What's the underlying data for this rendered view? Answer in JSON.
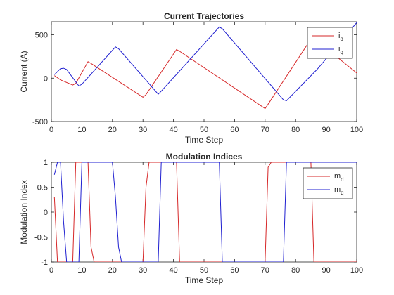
{
  "colors": {
    "id": "#d62728",
    "iq": "#1f1fd0",
    "axis": "#262626",
    "background": "#ffffff"
  },
  "chart_data": [
    {
      "type": "line",
      "title": "Current Trajectories",
      "xlabel": "Time Step",
      "ylabel": "Current (A)",
      "xlim": [
        0,
        100
      ],
      "ylim": [
        -500,
        650
      ],
      "xticks": [
        0,
        10,
        20,
        30,
        40,
        50,
        60,
        70,
        80,
        90,
        100
      ],
      "yticks": [
        -500,
        0,
        500
      ],
      "grid": false,
      "legend_position": "top-right",
      "series": [
        {
          "name_main": "i",
          "name_sub": "d",
          "color": "#d62728",
          "points": [
            [
              1,
              30
            ],
            [
              3,
              -20
            ],
            [
              7,
              -80
            ],
            [
              8,
              -60
            ],
            [
              12,
              190
            ],
            [
              13,
              170
            ],
            [
              30,
              -220
            ],
            [
              31,
              -190
            ],
            [
              41,
              330
            ],
            [
              42,
              310
            ],
            [
              70,
              -350
            ],
            [
              71,
              -300
            ],
            [
              85,
              450
            ],
            [
              86,
              460
            ],
            [
              100,
              60
            ]
          ]
        },
        {
          "name_main": "i",
          "name_sub": "q",
          "color": "#1f1fd0",
          "points": [
            [
              1,
              40
            ],
            [
              3,
              110
            ],
            [
              4,
              115
            ],
            [
              5,
              100
            ],
            [
              9,
              -90
            ],
            [
              10,
              -70
            ],
            [
              21,
              360
            ],
            [
              22,
              340
            ],
            [
              35,
              -185
            ],
            [
              36,
              -150
            ],
            [
              55,
              590
            ],
            [
              56,
              570
            ],
            [
              76,
              -250
            ],
            [
              77,
              -260
            ],
            [
              87,
              100
            ],
            [
              100,
              640
            ]
          ]
        }
      ]
    },
    {
      "type": "line",
      "title": "Modulation Indices",
      "xlabel": "Time Step",
      "ylabel": "Modulation Index",
      "xlim": [
        0,
        100
      ],
      "ylim": [
        -1,
        1
      ],
      "xticks": [
        0,
        10,
        20,
        30,
        40,
        50,
        60,
        70,
        80,
        90,
        100
      ],
      "yticks": [
        -1,
        -0.5,
        0,
        0.5,
        1
      ],
      "ytick_labels": [
        "-1",
        "-0.5",
        "0",
        "0.5",
        "1"
      ],
      "grid": false,
      "legend_position": "top-right",
      "series": [
        {
          "name_main": "m",
          "name_sub": "d",
          "color": "#d62728",
          "points": [
            [
              1,
              0.3
            ],
            [
              2,
              -1
            ],
            [
              7,
              -1
            ],
            [
              8,
              1
            ],
            [
              12,
              1
            ],
            [
              13,
              -0.7
            ],
            [
              14,
              -1
            ],
            [
              30,
              -1
            ],
            [
              31,
              0.5
            ],
            [
              32,
              1
            ],
            [
              41,
              1
            ],
            [
              42,
              -1
            ],
            [
              70,
              -1
            ],
            [
              71,
              0.9
            ],
            [
              72,
              1
            ],
            [
              85,
              1
            ],
            [
              86,
              -1
            ],
            [
              100,
              -1
            ]
          ]
        },
        {
          "name_main": "m",
          "name_sub": "q",
          "color": "#1f1fd0",
          "points": [
            [
              1,
              0.75
            ],
            [
              2,
              1
            ],
            [
              3,
              1
            ],
            [
              4,
              -0.2
            ],
            [
              5,
              -1
            ],
            [
              9,
              -1
            ],
            [
              10,
              1
            ],
            [
              20,
              1
            ],
            [
              21,
              0.3
            ],
            [
              22,
              -0.7
            ],
            [
              23,
              -1
            ],
            [
              35,
              -1
            ],
            [
              36,
              1
            ],
            [
              55,
              1
            ],
            [
              56,
              -1
            ],
            [
              76,
              -1
            ],
            [
              77,
              1
            ],
            [
              100,
              1
            ]
          ]
        }
      ]
    }
  ]
}
